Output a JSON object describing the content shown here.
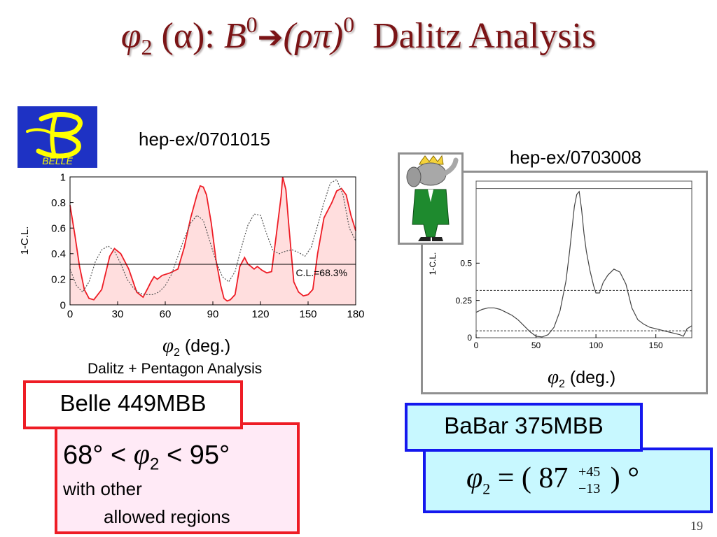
{
  "slide": {
    "title": {
      "phi": "φ",
      "sub": "2",
      "alpha_part": " (α): ",
      "B": "B",
      "sup1": "0",
      "arrow": "➔",
      "rhopi": "(ρπ)",
      "sup2": "0",
      "rest": "  Dalitz Analysis"
    },
    "page_number": "19"
  },
  "belle": {
    "logo_text": "BELLE",
    "reference": "hep-ex/0701015",
    "xlabel_phi": "φ",
    "xlabel_sub": "2",
    "xlabel_unit": " (deg.)",
    "caption": "Dalitz + Pentagon Analysis",
    "tag": "Belle 449MBB",
    "result_left": "68° < ",
    "result_phi": "φ",
    "result_sub": "2",
    "result_right": " < 95°",
    "result_note1": "with other",
    "result_note2": "allowed regions"
  },
  "babar": {
    "reference": "hep-ex/0703008",
    "xlabel_phi": "φ",
    "xlabel_sub": "2",
    "xlabel_unit": " (deg.)",
    "tag": "BaBar 375MBB",
    "result_phi": "φ",
    "result_sub": "2",
    "result_eq": " = ( 87 ",
    "result_plus": "+45",
    "result_minus": "−13",
    "result_close": " ) °"
  },
  "colors": {
    "title": "#7b1416",
    "belle_accent": "#ee1c25",
    "belle_fill": "#ffeaf6",
    "babar_accent": "#1418ee",
    "babar_fill": "#c8f8ff",
    "belle_logo_bg": "#1e32c4",
    "belle_logo_fg": "#ffff00"
  },
  "chart_data": [
    {
      "type": "line",
      "name": "belle",
      "ylabel": "1-C.L.",
      "xlim": [
        0,
        180
      ],
      "ylim": [
        0,
        1
      ],
      "xticks": [
        0,
        30,
        60,
        90,
        120,
        150,
        180
      ],
      "yticks": [
        0,
        0.2,
        0.4,
        0.6,
        0.8,
        1
      ],
      "hlines": [
        1.0,
        0.317
      ],
      "annotation": "C.L.=68.3%",
      "series": [
        {
          "style": "solid-filled",
          "x": [
            0,
            3,
            6,
            9,
            12,
            15,
            20,
            25,
            28,
            32,
            37,
            42,
            46,
            49,
            51,
            53,
            55,
            58,
            63,
            68,
            72,
            76,
            80,
            82,
            84,
            86,
            89,
            92,
            95,
            97,
            99,
            101,
            104,
            107,
            110,
            112,
            114,
            116,
            118,
            121,
            124,
            127,
            130,
            133,
            134,
            136,
            138,
            141,
            144,
            147,
            150,
            153,
            156,
            160,
            165,
            168,
            171,
            174,
            177,
            180
          ],
          "y": [
            0.78,
            0.55,
            0.3,
            0.12,
            0.05,
            0.04,
            0.12,
            0.38,
            0.44,
            0.4,
            0.28,
            0.1,
            0.06,
            0.13,
            0.18,
            0.22,
            0.2,
            0.23,
            0.25,
            0.28,
            0.45,
            0.68,
            0.86,
            0.93,
            0.92,
            0.86,
            0.64,
            0.35,
            0.15,
            0.05,
            0.03,
            0.04,
            0.08,
            0.3,
            0.37,
            0.32,
            0.3,
            0.28,
            0.3,
            0.27,
            0.25,
            0.26,
            0.55,
            0.85,
            1.0,
            0.9,
            0.6,
            0.18,
            0.1,
            0.07,
            0.08,
            0.12,
            0.4,
            0.68,
            0.8,
            0.89,
            0.91,
            0.86,
            0.7,
            0.58
          ]
        },
        {
          "style": "dotted",
          "x": [
            0,
            4,
            8,
            12,
            16,
            20,
            24,
            28,
            32,
            36,
            40,
            44,
            48,
            52,
            56,
            60,
            64,
            68,
            72,
            76,
            80,
            84,
            88,
            92,
            96,
            100,
            104,
            108,
            112,
            116,
            120,
            124,
            128,
            132,
            136,
            140,
            144,
            148,
            152,
            156,
            160,
            164,
            168,
            172,
            176,
            180
          ],
          "y": [
            0.28,
            0.15,
            0.1,
            0.18,
            0.34,
            0.43,
            0.46,
            0.42,
            0.32,
            0.2,
            0.13,
            0.09,
            0.08,
            0.08,
            0.1,
            0.15,
            0.24,
            0.38,
            0.52,
            0.64,
            0.7,
            0.66,
            0.5,
            0.34,
            0.22,
            0.18,
            0.26,
            0.45,
            0.62,
            0.71,
            0.7,
            0.55,
            0.42,
            0.4,
            0.42,
            0.43,
            0.41,
            0.38,
            0.45,
            0.62,
            0.8,
            0.95,
            0.98,
            0.86,
            0.6,
            0.5
          ]
        }
      ]
    },
    {
      "type": "line",
      "name": "babar",
      "ylabel": "1-C.L.",
      "xlim": [
        0,
        180
      ],
      "ylim": [
        0,
        1.05
      ],
      "xticks": [
        0,
        50,
        100,
        150
      ],
      "yticks": [
        0,
        0.25,
        0.5
      ],
      "hlines_solid": [
        1.0
      ],
      "hlines_dashed": [
        0.317,
        0.046
      ],
      "series": [
        {
          "style": "solid",
          "x": [
            0,
            5,
            10,
            15,
            20,
            25,
            30,
            35,
            40,
            45,
            50,
            55,
            60,
            65,
            70,
            75,
            78,
            80,
            82,
            84,
            86,
            88,
            90,
            92,
            95,
            98,
            100,
            103,
            106,
            110,
            115,
            120,
            125,
            130,
            135,
            140,
            145,
            150,
            155,
            160,
            165,
            170,
            173,
            176,
            180
          ],
          "y": [
            0.17,
            0.19,
            0.2,
            0.2,
            0.19,
            0.17,
            0.15,
            0.12,
            0.08,
            0.04,
            0.01,
            0.005,
            0.02,
            0.07,
            0.18,
            0.38,
            0.58,
            0.73,
            0.88,
            0.96,
            0.98,
            0.86,
            0.7,
            0.58,
            0.45,
            0.35,
            0.3,
            0.3,
            0.37,
            0.42,
            0.46,
            0.44,
            0.36,
            0.2,
            0.12,
            0.09,
            0.07,
            0.06,
            0.05,
            0.04,
            0.03,
            0.02,
            0.01,
            0.06,
            0.08
          ]
        }
      ]
    }
  ]
}
